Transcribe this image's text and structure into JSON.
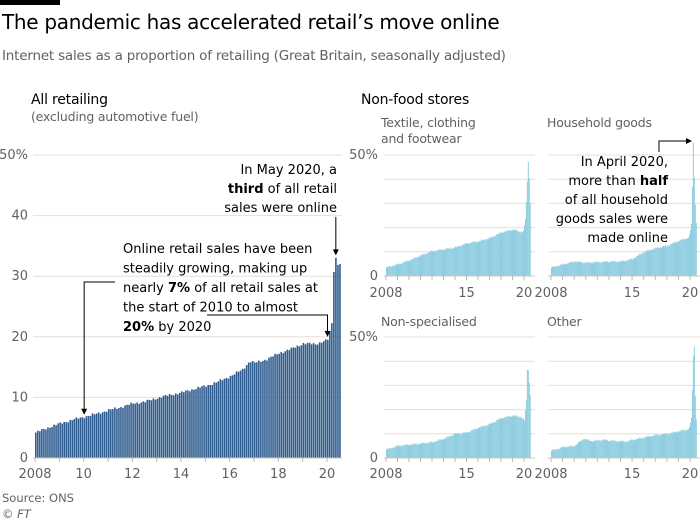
{
  "header": {
    "title": "The pandemic has accelerated retail’s move online",
    "subtitle": "Internet sales as a proportion of retailing (Great Britain, seasonally adjusted)"
  },
  "footer": {
    "source": "Source: ONS",
    "credit": "© FT"
  },
  "colors": {
    "main_bar": "#2e5c8f",
    "small_bar": "#8fcde0",
    "grid": "#e9ddd2",
    "axis_text": "#66605c",
    "annotation": "#000000"
  },
  "chart_data": [
    {
      "id": "all-retailing",
      "type": "bar",
      "title": "All retailing",
      "subtitle": "(excluding automotive fuel)",
      "xlabel": "",
      "ylabel": "",
      "ylim": [
        0,
        50
      ],
      "yticks": [
        0,
        10,
        20,
        30,
        40,
        50
      ],
      "ytick_labels": [
        "0",
        "10",
        "20",
        "30",
        "40",
        "50%"
      ],
      "xlim": [
        2008,
        2020.6
      ],
      "xticks": [
        2008,
        2010,
        2012,
        2014,
        2016,
        2018,
        2020
      ],
      "xtick_labels": [
        "2008",
        "10",
        "12",
        "14",
        "16",
        "18",
        "20"
      ],
      "grid": true,
      "frequency": "monthly",
      "x": [
        2008.0,
        2008.5,
        2009.0,
        2009.5,
        2010.0,
        2010.5,
        2011.0,
        2011.5,
        2012.0,
        2012.5,
        2013.0,
        2013.5,
        2014.0,
        2014.5,
        2015.0,
        2015.5,
        2016.0,
        2016.5,
        2016.8,
        2017.0,
        2017.5,
        2018.0,
        2018.5,
        2019.0,
        2019.5,
        2020.0,
        2020.17,
        2020.25,
        2020.33,
        2020.42,
        2020.5
      ],
      "values": [
        4.2,
        5.0,
        5.7,
        6.3,
        6.8,
        7.3,
        7.9,
        8.4,
        9.0,
        9.3,
        9.9,
        10.4,
        10.8,
        11.4,
        11.9,
        12.6,
        13.5,
        14.6,
        16.0,
        15.7,
        16.3,
        17.3,
        18.0,
        18.9,
        18.8,
        19.5,
        22.3,
        30.7,
        33.1,
        31.8,
        32.0
      ],
      "annotations": [
        {
          "text_parts": [
            [
              "In May 2020, a",
              false
            ],
            [
              "third",
              true
            ],
            [
              " of all retail",
              false
            ],
            [
              "sales were online",
              false
            ]
          ],
          "target_x": 2020.33,
          "target_y": 33.1
        },
        {
          "text_lines": [
            "Online retail sales have been",
            "steadily growing, making up",
            "nearly |7%| of all retail sales at",
            "the start of 2010 to almost",
            "|20%| by 2020"
          ],
          "targets": [
            {
              "x": 2010.0,
              "y": 6.8
            },
            {
              "x": 2020.0,
              "y": 19.5
            }
          ]
        }
      ]
    },
    {
      "id": "textile-clothing-footwear",
      "type": "bar",
      "group_title": "Non-food stores",
      "title": "Textile, clothing and footwear",
      "ylim": [
        0,
        50
      ],
      "yticks": [
        0,
        10,
        20,
        30,
        40,
        50
      ],
      "ytick_labels": [
        "0",
        "",
        "",
        "",
        "",
        "50%"
      ],
      "xticks": [
        2008,
        2015,
        2020
      ],
      "xtick_labels": [
        "2008",
        "15",
        "20"
      ],
      "x": [
        2008.0,
        2009.0,
        2010.0,
        2011.0,
        2012.0,
        2013.0,
        2014.0,
        2015.0,
        2016.0,
        2017.0,
        2018.0,
        2019.0,
        2019.9,
        2020.1,
        2020.25,
        2020.33,
        2020.42,
        2020.5
      ],
      "values": [
        3.5,
        4.8,
        6.5,
        8.5,
        10.3,
        11.0,
        11.8,
        13.5,
        14.3,
        15.7,
        18.0,
        19.2,
        18.0,
        24.0,
        39.0,
        47.5,
        40.0,
        30.0
      ]
    },
    {
      "id": "household-goods",
      "type": "bar",
      "title": "Household goods",
      "ylim": [
        0,
        50
      ],
      "yticks": [
        0,
        10,
        20,
        30,
        40,
        50
      ],
      "xticks": [
        2008,
        2015,
        2020
      ],
      "xtick_labels": [
        "2008",
        "15",
        "20"
      ],
      "x": [
        2008.0,
        2009.0,
        2010.0,
        2011.0,
        2012.0,
        2013.0,
        2014.0,
        2015.0,
        2016.0,
        2017.0,
        2018.0,
        2019.0,
        2019.9,
        2020.1,
        2020.25,
        2020.33,
        2020.42,
        2020.5
      ],
      "values": [
        3.5,
        4.8,
        6.0,
        5.5,
        5.7,
        6.0,
        6.0,
        7.0,
        10.0,
        11.5,
        12.5,
        14.5,
        16.0,
        22.0,
        55.0,
        41.0,
        29.0,
        22.0
      ],
      "annotation": {
        "lines": [
          "In April 2020,",
          "more than |half|",
          "of all household",
          "goods sales were",
          "made online"
        ],
        "target_x": 2020.25,
        "target_y": 55
      }
    },
    {
      "id": "non-specialised",
      "type": "bar",
      "title": "Non-specialised",
      "ylim": [
        0,
        50
      ],
      "yticks": [
        0,
        10,
        20,
        30,
        40,
        50
      ],
      "ytick_labels": [
        "0",
        "",
        "",
        "",
        "",
        "50%"
      ],
      "xticks": [
        2008,
        2015,
        2020
      ],
      "xtick_labels": [
        "2008",
        "15",
        "20"
      ],
      "x": [
        2008.0,
        2009.0,
        2010.0,
        2011.0,
        2012.0,
        2013.0,
        2014.0,
        2015.0,
        2016.0,
        2017.0,
        2018.0,
        2019.0,
        2019.7,
        2020.0,
        2020.17,
        2020.25,
        2020.33,
        2020.42,
        2020.5
      ],
      "values": [
        3.5,
        5.0,
        5.5,
        6.0,
        6.5,
        8.0,
        10.0,
        10.5,
        12.5,
        14.0,
        16.5,
        17.5,
        17.0,
        15.5,
        24.0,
        36.5,
        36.5,
        31.0,
        26.0
      ]
    },
    {
      "id": "other",
      "type": "bar",
      "title": "Other",
      "ylim": [
        0,
        50
      ],
      "yticks": [
        0,
        10,
        20,
        30,
        40,
        50
      ],
      "xticks": [
        2008,
        2015,
        2020
      ],
      "xtick_labels": [
        "2008",
        "15",
        "20"
      ],
      "x": [
        2008.0,
        2009.0,
        2010.0,
        2010.8,
        2011.5,
        2012.5,
        2013.5,
        2014.5,
        2015.0,
        2016.0,
        2017.0,
        2018.0,
        2019.0,
        2019.9,
        2020.1,
        2020.25,
        2020.33,
        2020.42,
        2020.5
      ],
      "values": [
        3.0,
        4.5,
        5.0,
        8.0,
        7.0,
        7.5,
        7.0,
        6.8,
        7.5,
        8.5,
        9.5,
        10.0,
        11.0,
        12.0,
        17.0,
        42.0,
        47.0,
        25.0,
        16.0
      ]
    }
  ],
  "labels": {
    "all_title": "All retailing",
    "all_sub": "(excluding automotive fuel)",
    "nonfood_title": "Non-food stores",
    "textile_line1": "Textile, clothing",
    "textile_line2": "and footwear",
    "household": "Household goods",
    "nonspec": "Non-specialised",
    "other": "Other"
  }
}
